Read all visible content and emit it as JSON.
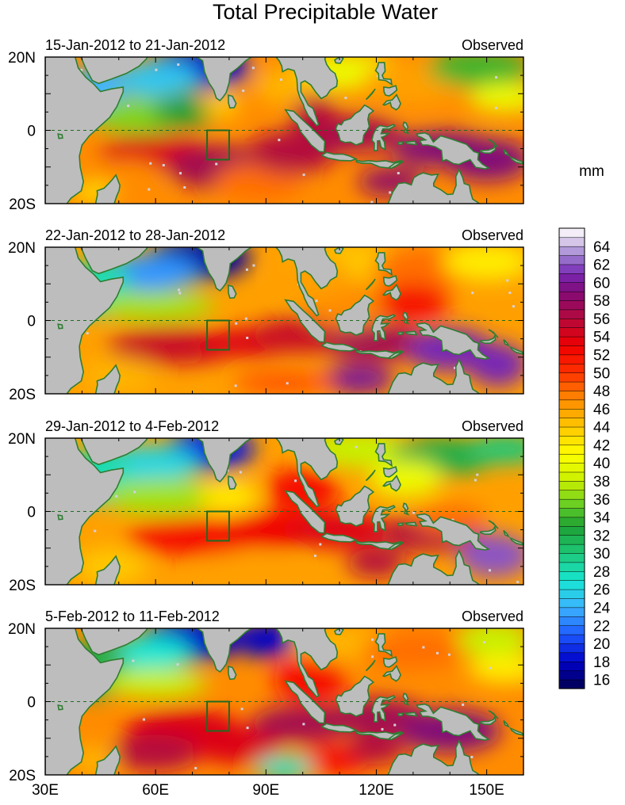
{
  "chart_data": {
    "type": "heatmap",
    "title": "Total Precipitable Water",
    "units_label": "mm",
    "x_ticks": [
      {
        "value": 30,
        "label": "30E"
      },
      {
        "value": 60,
        "label": "60E"
      },
      {
        "value": 90,
        "label": "90E"
      },
      {
        "value": 120,
        "label": "120E"
      },
      {
        "value": 150,
        "label": "150E"
      }
    ],
    "y_ticks": [
      {
        "value": 20,
        "label": "20N"
      },
      {
        "value": 0,
        "label": "0"
      },
      {
        "value": -20,
        "label": "20S"
      }
    ],
    "xlim": [
      30,
      160
    ],
    "ylim": [
      -20,
      20
    ],
    "analysis_box": {
      "lon": [
        74,
        80
      ],
      "lat": [
        -8,
        0
      ]
    },
    "panels": [
      {
        "date_range": "15-Jan-2012 to 21-Jan-2012",
        "tag": "Observed"
      },
      {
        "date_range": "22-Jan-2012 to 28-Jan-2012",
        "tag": "Observed"
      },
      {
        "date_range": "29-Jan-2012 to 4-Feb-2012",
        "tag": "Observed"
      },
      {
        "date_range": "5-Feb-2012 to 11-Feb-2012",
        "tag": "Observed"
      }
    ],
    "colorbar": {
      "min": 15,
      "max": 66,
      "step": 1,
      "labels": [
        "64",
        "62",
        "60",
        "58",
        "56",
        "54",
        "52",
        "50",
        "48",
        "46",
        "44",
        "42",
        "40",
        "38",
        "36",
        "34",
        "32",
        "30",
        "28",
        "26",
        "24",
        "22",
        "20",
        "18",
        "16"
      ],
      "colors": [
        {
          "v": 15,
          "c": "#000050"
        },
        {
          "v": 18,
          "c": "#0000c8"
        },
        {
          "v": 21,
          "c": "#1e5aff"
        },
        {
          "v": 24,
          "c": "#3cb4ff"
        },
        {
          "v": 27,
          "c": "#17e6d2"
        },
        {
          "v": 30,
          "c": "#1ec878"
        },
        {
          "v": 33,
          "c": "#1ea032"
        },
        {
          "v": 35,
          "c": "#5ac828"
        },
        {
          "v": 38,
          "c": "#c8f000"
        },
        {
          "v": 41,
          "c": "#ffff00"
        },
        {
          "v": 44,
          "c": "#ffc800"
        },
        {
          "v": 47,
          "c": "#ff8c00"
        },
        {
          "v": 50,
          "c": "#ff3200"
        },
        {
          "v": 53,
          "c": "#f00000"
        },
        {
          "v": 56,
          "c": "#b40a3c"
        },
        {
          "v": 59,
          "c": "#820a78"
        },
        {
          "v": 61,
          "c": "#7828b4"
        },
        {
          "v": 63,
          "c": "#a082d2"
        },
        {
          "v": 65,
          "c": "#e6dcf0"
        },
        {
          "v": 66,
          "c": "#ffffff"
        }
      ]
    }
  }
}
